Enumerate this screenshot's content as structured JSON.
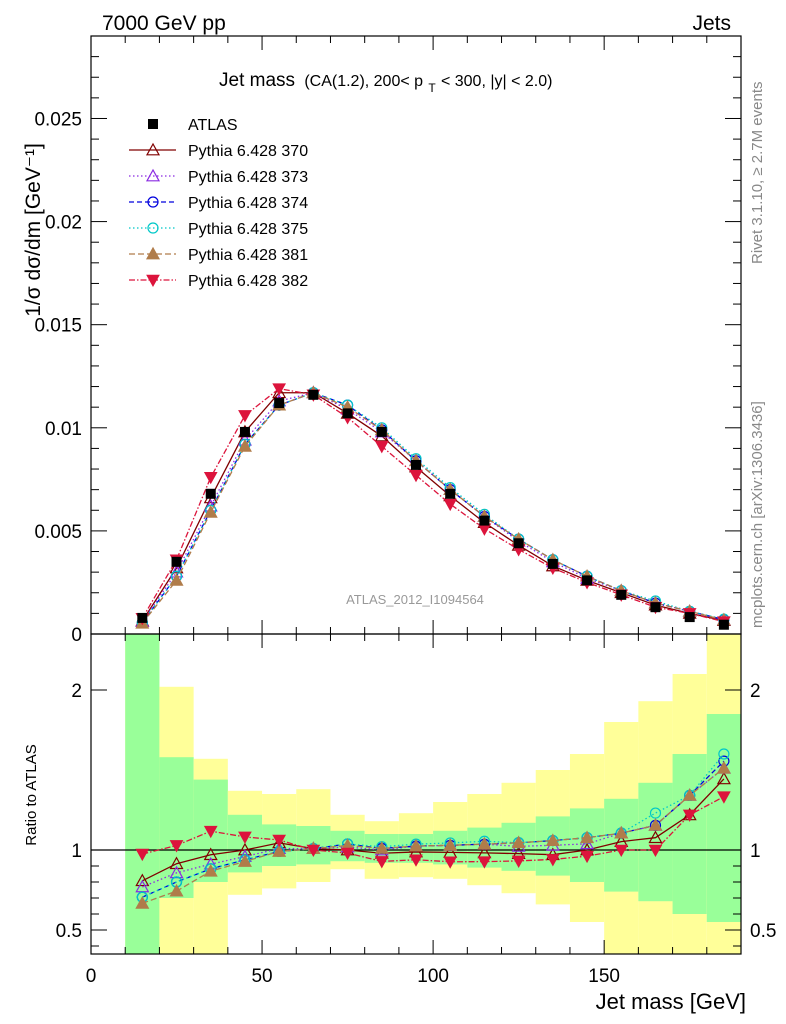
{
  "header": {
    "left": "7000 GeV pp",
    "right": "Jets",
    "side_top": "Rivet 3.1.10, ≥ 2.7M events",
    "side_bottom": "mcplots.cern.ch [arXiv:1306.3436]",
    "watermark": "ATLAS_2012_I1094564"
  },
  "title": {
    "main": "Jet mass",
    "sub_pre": "(CA(1.2), 200< p",
    "sub_subscript": "T",
    "sub_post": " < 300, |y| < 2.0)"
  },
  "axes": {
    "main_ylabel": "1/σ dσ/dm [GeV⁻¹]",
    "ratio_ylabel": "Ratio to ATLAS",
    "xlabel": "Jet mass [GeV]",
    "main_yticks": [
      "0",
      "0.005",
      "0.01",
      "0.015",
      "0.02",
      "0.025"
    ],
    "ratio_yticks": [
      "0.5",
      "1",
      "2"
    ],
    "xticks": [
      "0",
      "50",
      "100",
      "150"
    ]
  },
  "chart_data": {
    "type": "scatter",
    "xlim": [
      0,
      190
    ],
    "ylim": [
      0,
      0.029
    ],
    "ratio_ylim": [
      0.35,
      2.35
    ],
    "x": [
      15,
      25,
      35,
      45,
      55,
      65,
      75,
      85,
      95,
      105,
      115,
      125,
      135,
      145,
      155,
      165,
      175,
      185
    ],
    "bins": [
      [
        10,
        20
      ],
      [
        20,
        30
      ],
      [
        30,
        40
      ],
      [
        40,
        50
      ],
      [
        50,
        60
      ],
      [
        60,
        70
      ],
      [
        70,
        80
      ],
      [
        80,
        90
      ],
      [
        90,
        100
      ],
      [
        100,
        110
      ],
      [
        110,
        120
      ],
      [
        120,
        130
      ],
      [
        130,
        140
      ],
      [
        140,
        150
      ],
      [
        150,
        160
      ],
      [
        160,
        170
      ],
      [
        170,
        180
      ],
      [
        180,
        190
      ]
    ],
    "data": {
      "name": "ATLAS",
      "values": [
        0.00078,
        0.0035,
        0.0068,
        0.0098,
        0.0112,
        0.0116,
        0.0107,
        0.0098,
        0.0082,
        0.0068,
        0.0055,
        0.0044,
        0.0034,
        0.0026,
        0.0019,
        0.0013,
        0.00082,
        0.00045
      ]
    },
    "series": [
      {
        "name": "Pythia 6.428 370",
        "color": "#800000",
        "marker": "triangle-open",
        "dash": "",
        "values": [
          0.00063,
          0.0032,
          0.0066,
          0.0098,
          0.0117,
          0.0117,
          0.0107,
          0.0096,
          0.0081,
          0.0067,
          0.0054,
          0.0043,
          0.0033,
          0.0026,
          0.002,
          0.0014,
          0.001,
          0.00065
        ]
      },
      {
        "name": "Pythia 6.428 373",
        "color": "#8a2be2",
        "marker": "triangle-open",
        "dash": "1.5,2.5",
        "values": [
          0.0006,
          0.003,
          0.0062,
          0.0094,
          0.0113,
          0.0117,
          0.0109,
          0.0098,
          0.0084,
          0.007,
          0.0057,
          0.0045,
          0.0035,
          0.0027,
          0.0021,
          0.0015,
          0.0011,
          0.00068
        ]
      },
      {
        "name": "Pythia 6.428 374",
        "color": "#0000dd",
        "marker": "circle-open",
        "dash": "5,3",
        "values": [
          0.00055,
          0.0028,
          0.006,
          0.0092,
          0.0111,
          0.0117,
          0.0111,
          0.0099,
          0.0084,
          0.007,
          0.0057,
          0.0046,
          0.0036,
          0.0028,
          0.0021,
          0.0015,
          0.0011,
          0.0007
        ]
      },
      {
        "name": "Pythia 6.428 375",
        "color": "#00c8c8",
        "marker": "circle-open",
        "dash": "1.5,2.5",
        "values": [
          0.00055,
          0.0028,
          0.006,
          0.0092,
          0.0111,
          0.0117,
          0.0111,
          0.01,
          0.0085,
          0.0071,
          0.0058,
          0.0046,
          0.0036,
          0.0028,
          0.0021,
          0.0016,
          0.0011,
          0.00072
        ]
      },
      {
        "name": "Pythia 6.428 381",
        "color": "#b07c4a",
        "marker": "triangle-filled",
        "dash": "6,3",
        "values": [
          0.00052,
          0.0026,
          0.0059,
          0.0091,
          0.0111,
          0.0117,
          0.011,
          0.0099,
          0.0084,
          0.007,
          0.0057,
          0.0046,
          0.0036,
          0.0028,
          0.0021,
          0.0015,
          0.0011,
          0.00068
        ]
      },
      {
        "name": "Pythia 6.428 382",
        "color": "#dc143c",
        "marker": "triangle-down-filled",
        "dash": "6,2,1.5,2",
        "values": [
          0.00076,
          0.0036,
          0.0076,
          0.0106,
          0.0119,
          0.0116,
          0.0105,
          0.0091,
          0.0077,
          0.0063,
          0.0051,
          0.0041,
          0.0032,
          0.0025,
          0.0019,
          0.0013,
          0.001,
          0.0006
        ]
      }
    ],
    "ratio_band_inner": [
      [
        0.35,
        2.35
      ],
      [
        0.7,
        1.58
      ],
      [
        0.8,
        1.44
      ],
      [
        0.86,
        1.22
      ],
      [
        0.9,
        1.16
      ],
      [
        0.91,
        1.15
      ],
      [
        0.93,
        1.12
      ],
      [
        0.92,
        1.1
      ],
      [
        0.92,
        1.1
      ],
      [
        0.91,
        1.12
      ],
      [
        0.89,
        1.14
      ],
      [
        0.87,
        1.17
      ],
      [
        0.84,
        1.21
      ],
      [
        0.8,
        1.26
      ],
      [
        0.74,
        1.32
      ],
      [
        0.68,
        1.42
      ],
      [
        0.6,
        1.6
      ],
      [
        0.55,
        1.85
      ]
    ],
    "ratio_band_outer": [
      [
        0.35,
        2.35
      ],
      [
        0.35,
        2.02
      ],
      [
        0.35,
        1.57
      ],
      [
        0.72,
        1.37
      ],
      [
        0.76,
        1.35
      ],
      [
        0.8,
        1.38
      ],
      [
        0.88,
        1.22
      ],
      [
        0.82,
        1.18
      ],
      [
        0.83,
        1.23
      ],
      [
        0.82,
        1.3
      ],
      [
        0.78,
        1.35
      ],
      [
        0.73,
        1.42
      ],
      [
        0.66,
        1.5
      ],
      [
        0.55,
        1.6
      ],
      [
        0.35,
        1.8
      ],
      [
        0.35,
        1.93
      ],
      [
        0.35,
        2.1
      ],
      [
        0.35,
        2.35
      ]
    ]
  }
}
